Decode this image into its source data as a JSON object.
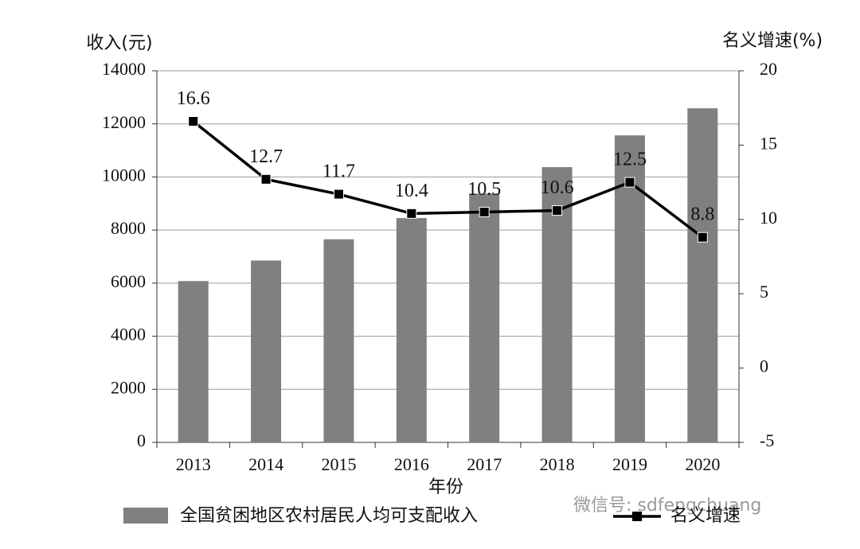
{
  "chart_data": {
    "type": "bar",
    "y_label": "收入(元)",
    "y2_label": "名义增速(%)",
    "x_label": "年份",
    "categories": [
      "2013",
      "2014",
      "2015",
      "2016",
      "2017",
      "2018",
      "2019",
      "2020"
    ],
    "series": [
      {
        "name": "全国贫困地区农村居民人均可支配收入",
        "type": "bar",
        "color": "#808080",
        "values": [
          6079,
          6852,
          7653,
          8452,
          9377,
          10371,
          11567,
          12588
        ]
      },
      {
        "name": "名义增速",
        "type": "line",
        "axis": "y2",
        "color": "#000000",
        "values": [
          16.6,
          12.7,
          11.7,
          10.4,
          10.5,
          10.6,
          12.5,
          8.8
        ]
      }
    ],
    "ylim": [
      0,
      14000
    ],
    "yticks": [
      0,
      2000,
      4000,
      6000,
      8000,
      10000,
      12000,
      14000
    ],
    "y2lim": [
      -5,
      20
    ],
    "y2ticks": [
      -5,
      0,
      5,
      10,
      15,
      20
    ],
    "grid": true,
    "watermark": "微信号: sdfengchuang"
  }
}
